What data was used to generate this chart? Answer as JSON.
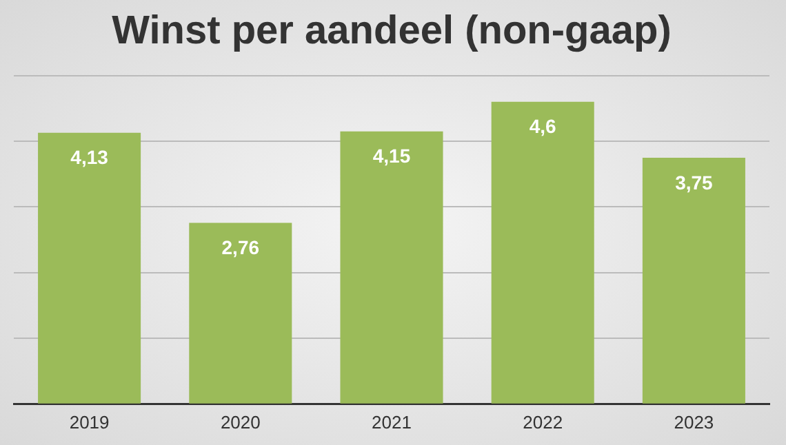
{
  "chart_data": {
    "type": "bar",
    "title": "Winst per aandeel (non-gaap)",
    "categories": [
      "2019",
      "2020",
      "2021",
      "2022",
      "2023"
    ],
    "values": [
      4.13,
      2.76,
      4.15,
      4.6,
      3.75
    ],
    "value_labels": [
      "4,13",
      "2,76",
      "4,15",
      "4,6",
      "3,75"
    ],
    "color": "#9bbb59",
    "grid": "y",
    "tick_labels": "x",
    "legend": false
  }
}
